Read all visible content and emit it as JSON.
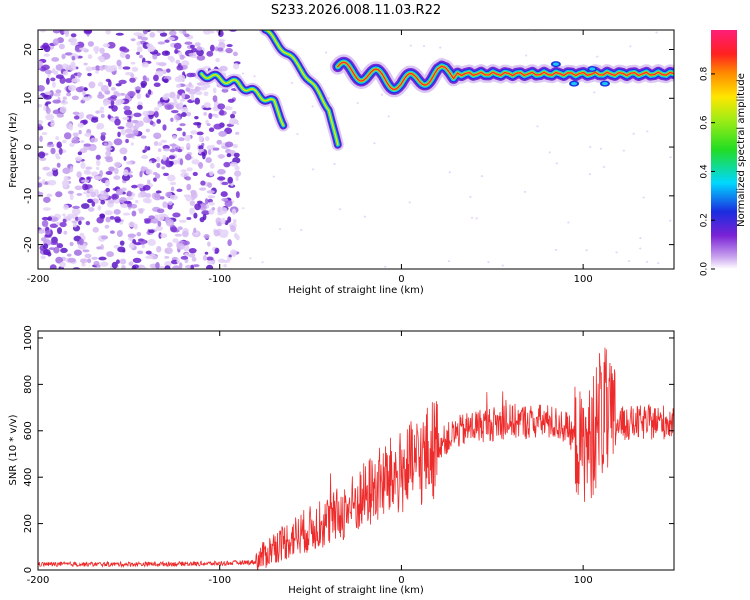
{
  "chart_data": [
    {
      "type": "heatmap",
      "title": "S233.2026.008.11.03.R22",
      "xlabel": "Height of straight line (km)",
      "ylabel": "Frequency (Hz)",
      "xlim": [
        -200,
        150
      ],
      "ylim": [
        -25,
        24
      ],
      "xticks": [
        -200,
        -100,
        0,
        100
      ],
      "yticks": [
        20,
        10,
        0,
        -10,
        -20
      ],
      "colorbar": {
        "label": "Normalized spectral amplitude",
        "range": [
          0,
          0.98
        ],
        "ticks": [
          0.0,
          0.2,
          0.4,
          0.6,
          0.8
        ]
      },
      "features": [
        {
          "name": "noise-field",
          "x_range": [
            -200,
            -90
          ],
          "freq_range": [
            -25,
            24
          ]
        },
        {
          "name": "descending-track-1",
          "points": [
            [
              -75,
              24
            ],
            [
              -55,
              16
            ],
            [
              -40,
              8
            ],
            [
              -35,
              0
            ]
          ]
        },
        {
          "name": "descending-track-2",
          "points": [
            [
              -110,
              15
            ],
            [
              -90,
              13
            ],
            [
              -70,
              9
            ],
            [
              -65,
              5
            ]
          ]
        },
        {
          "name": "steady-carrier",
          "points": [
            [
              -35,
              16
            ],
            [
              -20,
              15
            ],
            [
              0,
              13
            ],
            [
              20,
              15
            ],
            [
              150,
              15
            ]
          ]
        }
      ]
    },
    {
      "type": "line",
      "xlabel": "Height of straight line (km)",
      "ylabel": "SNR (10 * v/v)",
      "xlim": [
        -200,
        150
      ],
      "ylim": [
        0,
        1030
      ],
      "xticks": [
        -200,
        -100,
        0,
        100
      ],
      "yticks": [
        0,
        200,
        400,
        600,
        800,
        1000
      ],
      "color": "#ee2b2b",
      "series": [
        {
          "name": "SNR",
          "envelope": [
            [
              -200,
              25
            ],
            [
              -150,
              25
            ],
            [
              -100,
              28
            ],
            [
              -80,
              35
            ],
            [
              -70,
              100
            ],
            [
              -55,
              160
            ],
            [
              -40,
              210
            ],
            [
              -30,
              260
            ],
            [
              -20,
              320
            ],
            [
              -10,
              380
            ],
            [
              0,
              420
            ],
            [
              10,
              470
            ],
            [
              20,
              540
            ],
            [
              30,
              590
            ],
            [
              40,
              620
            ],
            [
              60,
              640
            ],
            [
              80,
              640
            ],
            [
              90,
              620
            ],
            [
              100,
              520
            ],
            [
              105,
              560
            ],
            [
              110,
              700
            ],
            [
              115,
              620
            ],
            [
              120,
              630
            ],
            [
              150,
              640
            ]
          ]
        }
      ]
    }
  ]
}
